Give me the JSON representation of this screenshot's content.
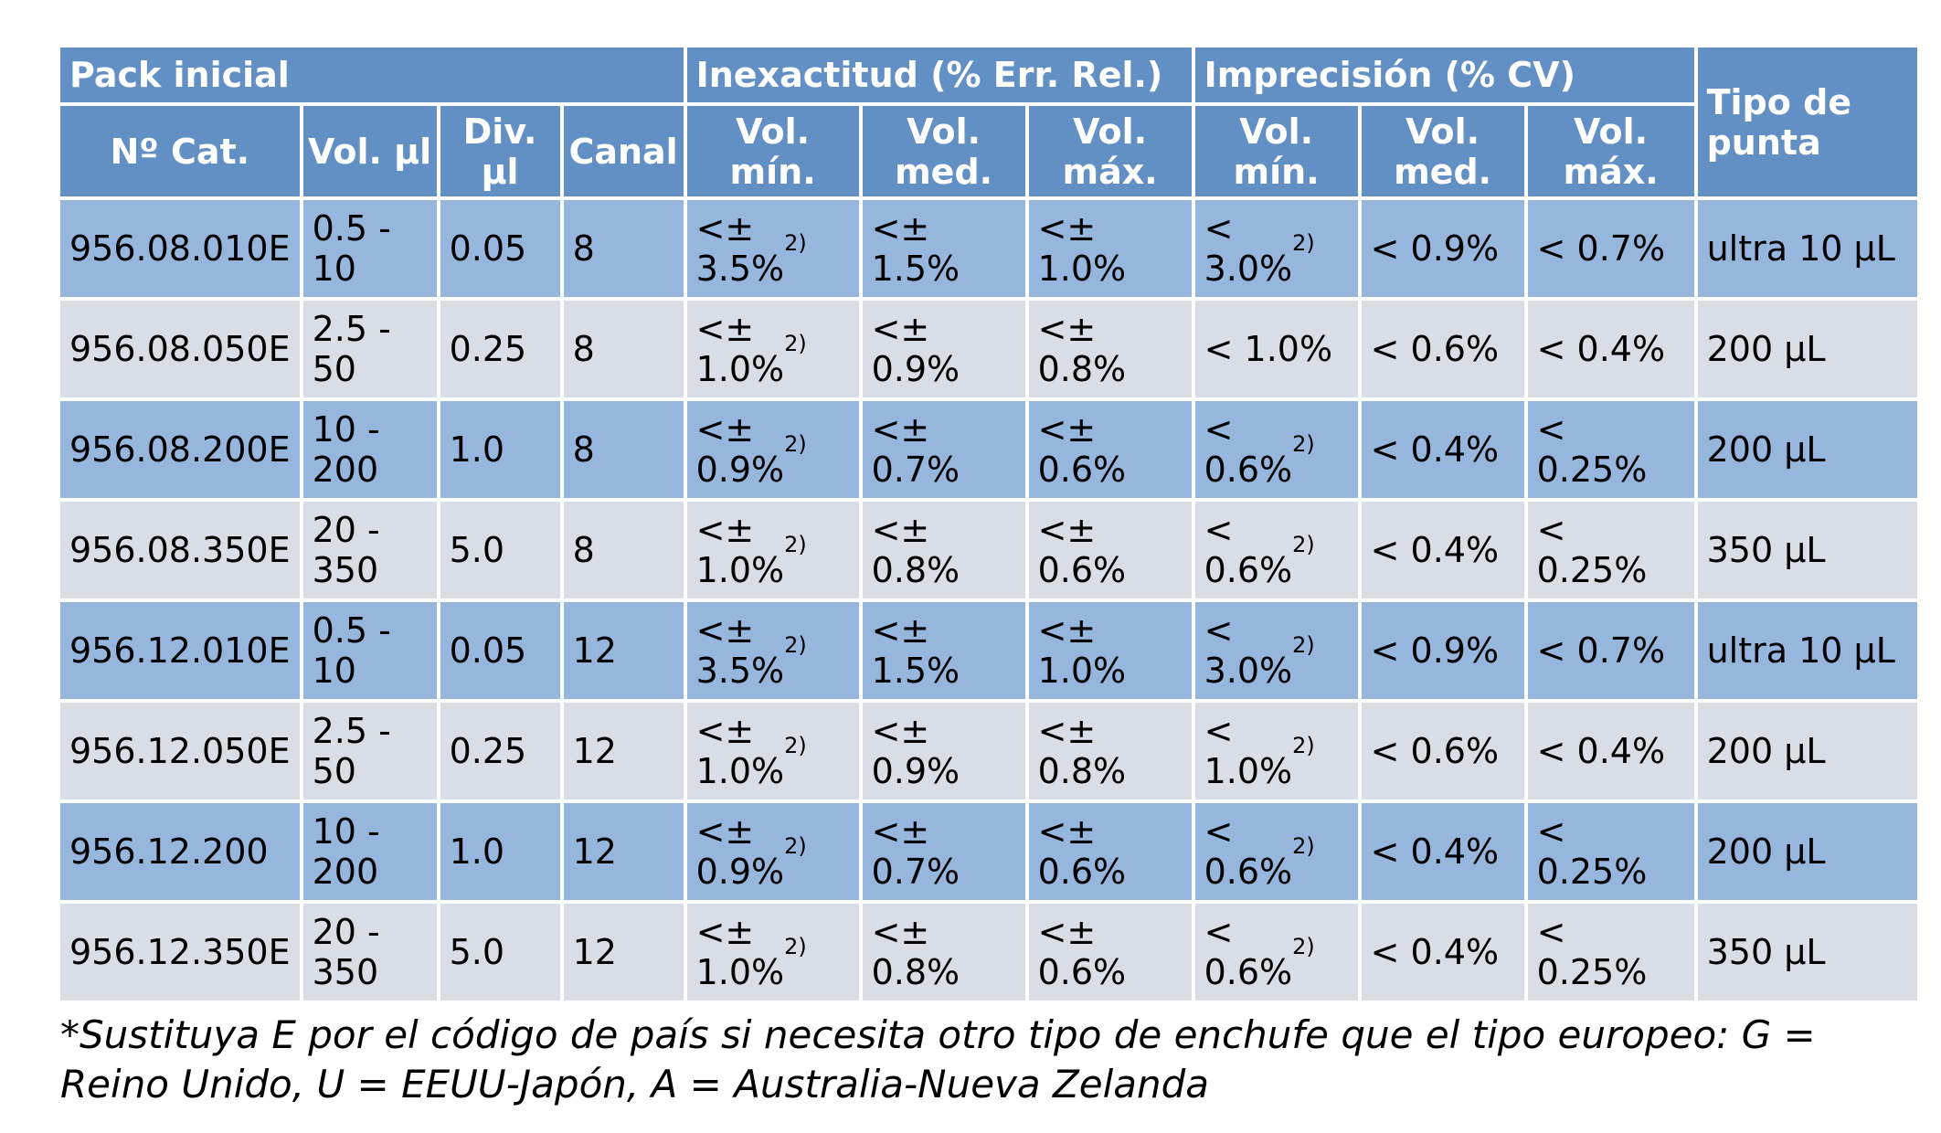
{
  "table": {
    "group_headers": {
      "pack": "Pack inicial",
      "inexactitud": "Inexactitud (% Err. Rel.)",
      "imprecision": "Imprecisión (% CV)"
    },
    "columns": {
      "cat": "Nº Cat.",
      "vol": "Vol. µl",
      "div": "Div.\nµl",
      "canal": "Canal",
      "inex_min": "Vol.\nmín.",
      "inex_med": "Vol.\nmed.",
      "inex_max": "Vol.\nmáx.",
      "imp_min": "Vol.\nmín.",
      "imp_med": "Vol.\nmed.",
      "imp_max": "Vol.\nmáx.",
      "tipo": "Tipo de\npunta"
    },
    "rows": [
      {
        "cat": "956.08.010E",
        "vol": "0.5 -\n10",
        "div": "0.05",
        "canal": "8",
        "inex_min": {
          "text": "<±\n3.5%",
          "sup": "2)"
        },
        "inex_med": "<±\n1.5%",
        "inex_max": "<±\n1.0%",
        "imp_min": {
          "text": "<\n3.0%",
          "sup": "2)"
        },
        "imp_med": "< 0.9%",
        "imp_max": "< 0.7%",
        "tipo": "ultra 10 µL"
      },
      {
        "cat": "956.08.050E",
        "vol": "2.5 -\n50",
        "div": "0.25",
        "canal": "8",
        "inex_min": {
          "text": "<±\n1.0%",
          "sup": "2)"
        },
        "inex_med": "<±\n0.9%",
        "inex_max": "<±\n0.8%",
        "imp_min": {
          "text": "< 1.0%",
          "sup": ""
        },
        "imp_med": "< 0.6%",
        "imp_max": "< 0.4%",
        "tipo": "200 µL"
      },
      {
        "cat": "956.08.200E",
        "vol": "10 -\n200",
        "div": "1.0",
        "canal": "8",
        "inex_min": {
          "text": "<±\n0.9%",
          "sup": "2)"
        },
        "inex_med": "<±\n0.7%",
        "inex_max": "<±\n0.6%",
        "imp_min": {
          "text": "<\n0.6%",
          "sup": "2)"
        },
        "imp_med": "< 0.4%",
        "imp_max": "< 0.25%",
        "tipo": "200 µL"
      },
      {
        "cat": "956.08.350E",
        "vol": "20 -\n350",
        "div": "5.0",
        "canal": "8",
        "inex_min": {
          "text": "<±\n1.0%",
          "sup": "2)"
        },
        "inex_med": "<±\n0.8%",
        "inex_max": "<±\n0.6%",
        "imp_min": {
          "text": "<\n0.6%",
          "sup": "2)"
        },
        "imp_med": "< 0.4%",
        "imp_max": "< 0.25%",
        "tipo": "350 µL"
      },
      {
        "cat": "956.12.010E",
        "vol": "0.5 -\n10",
        "div": "0.05",
        "canal": "12",
        "inex_min": {
          "text": "<±\n3.5%",
          "sup": "2)"
        },
        "inex_med": "<±\n1.5%",
        "inex_max": "<±\n1.0%",
        "imp_min": {
          "text": "<\n3.0%",
          "sup": "2)"
        },
        "imp_med": "< 0.9%",
        "imp_max": "< 0.7%",
        "tipo": "ultra 10 µL"
      },
      {
        "cat": "956.12.050E",
        "vol": "2.5 -\n50",
        "div": "0.25",
        "canal": "12",
        "inex_min": {
          "text": "<±\n1.0%",
          "sup": "2)"
        },
        "inex_med": "<±\n0.9%",
        "inex_max": "<±\n0.8%",
        "imp_min": {
          "text": "<\n1.0%",
          "sup": "2)"
        },
        "imp_med": "< 0.6%",
        "imp_max": "< 0.4%",
        "tipo": "200 µL"
      },
      {
        "cat": "956.12.200",
        "vol": "10 -\n200",
        "div": "1.0",
        "canal": "12",
        "inex_min": {
          "text": "<±\n0.9%",
          "sup": "2)"
        },
        "inex_med": "<±\n0.7%",
        "inex_max": "<±\n0.6%",
        "imp_min": {
          "text": "<\n0.6%",
          "sup": "2)"
        },
        "imp_med": "< 0.4%",
        "imp_max": "< 0.25%",
        "tipo": "200 µL"
      },
      {
        "cat": "956.12.350E",
        "vol": "20 -\n350",
        "div": "5.0",
        "canal": "12",
        "inex_min": {
          "text": "<±\n1.0%",
          "sup": "2)"
        },
        "inex_med": "<±\n0.8%",
        "inex_max": "<±\n0.6%",
        "imp_min": {
          "text": "<\n0.6%",
          "sup": "2)"
        },
        "imp_med": "< 0.4%",
        "imp_max": "< 0.25%",
        "tipo": "350 µL"
      }
    ]
  },
  "footnote": "*Sustituya E por el código de país si necesita otro tipo de enchufe que el tipo europeo: G = Reino Unido, U = EEUU-Japón, A = Australia-Nueva Zelanda",
  "colors": {
    "header_bg": "#628fc4",
    "row_blue": "#96b6dd",
    "row_grey": "#d8dde6",
    "header_text": "#ffffff"
  }
}
